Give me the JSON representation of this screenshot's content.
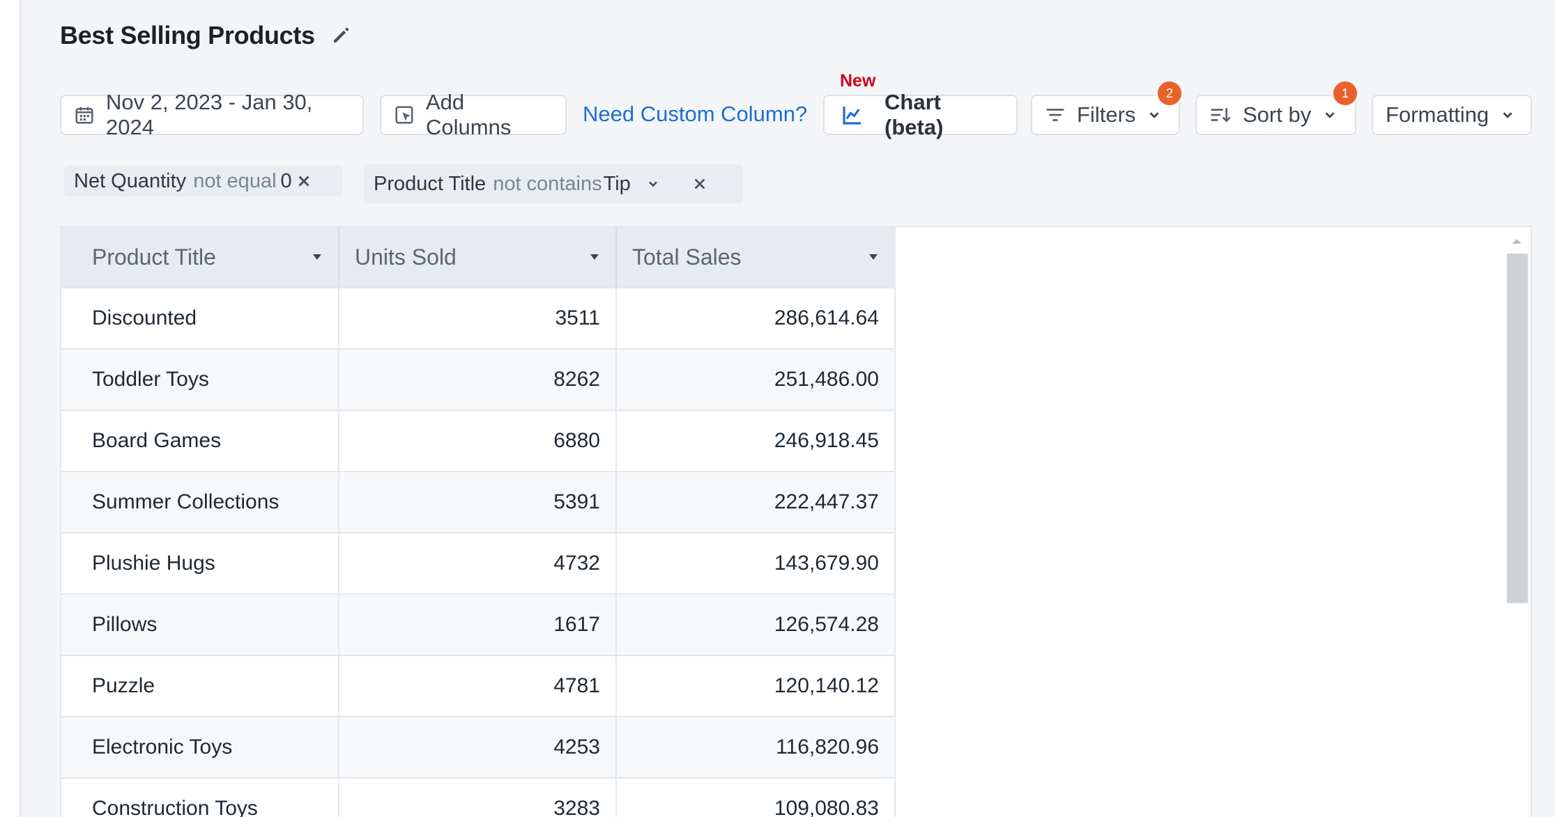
{
  "page": {
    "title": "Best Selling Products",
    "new_label": "New"
  },
  "toolbar": {
    "date_range": "Nov 2, 2023 - Jan 30, 2024",
    "add_columns": "Add Columns",
    "custom_column_link": "Need Custom Column?",
    "chart": "Chart (beta)",
    "filters": "Filters",
    "filters_count": "2",
    "sort_by": "Sort by",
    "sort_count": "1",
    "formatting": "Formatting"
  },
  "active_filters": [
    {
      "field": "Net Quantity",
      "operator": "not equal",
      "value": "0"
    },
    {
      "field": "Product Title",
      "operator": "not contains",
      "value": "Tip"
    }
  ],
  "table": {
    "columns": [
      "Product Title",
      "Units Sold",
      "Total Sales"
    ],
    "rows": [
      {
        "product": "Discounted",
        "units": "3511",
        "sales": "286,614.64"
      },
      {
        "product": "Toddler Toys",
        "units": "8262",
        "sales": "251,486.00"
      },
      {
        "product": "Board Games",
        "units": "6880",
        "sales": "246,918.45"
      },
      {
        "product": "Summer Collections",
        "units": "5391",
        "sales": "222,447.37"
      },
      {
        "product": "Plushie Hugs",
        "units": "4732",
        "sales": "143,679.90"
      },
      {
        "product": "Pillows",
        "units": "1617",
        "sales": "126,574.28"
      },
      {
        "product": "Puzzle",
        "units": "4781",
        "sales": "120,140.12"
      },
      {
        "product": "Electronic Toys",
        "units": "4253",
        "sales": "116,820.96"
      },
      {
        "product": "Construction Toys",
        "units": "3283",
        "sales": "109,080.83"
      }
    ]
  },
  "colors": {
    "link": "#1d6fce",
    "badge": "#e8622c",
    "new_label": "#d0021b",
    "chart_icon": "#1d6fce"
  }
}
